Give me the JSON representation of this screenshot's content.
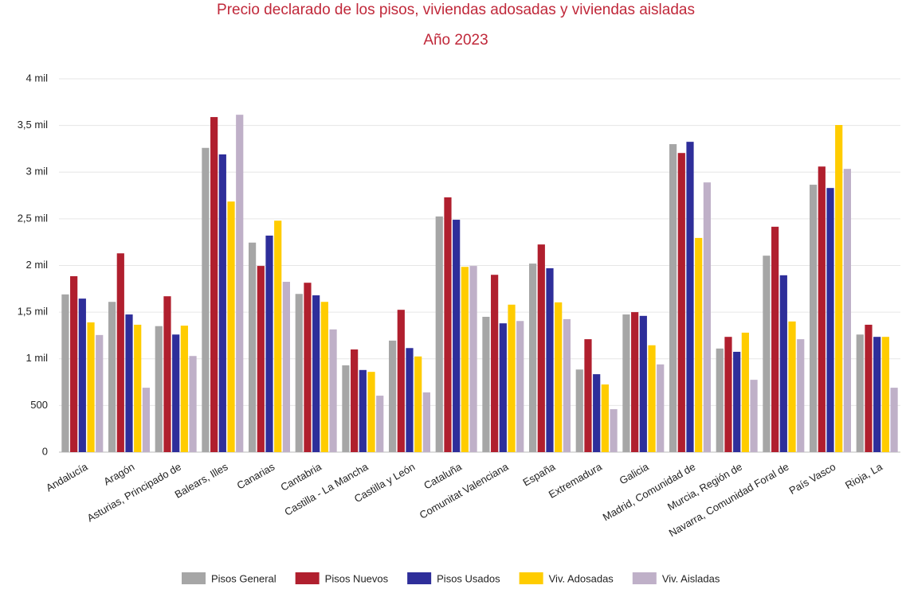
{
  "chart_data": {
    "type": "bar",
    "title": "Precio declarado de los pisos, viviendas adosadas y viviendas aisladas",
    "subtitle": "Año 2023",
    "categories": [
      "Andalucía",
      "Aragón",
      "Asturias, Principado de",
      "Balears, Illes",
      "Canarias",
      "Cantabria",
      "Castilla - La Mancha",
      "Castilla y León",
      "Cataluña",
      "Comunitat Valenciana",
      "España",
      "Extremadura",
      "Galicia",
      "Madrid, Comunidad de",
      "Murcia, Región de",
      "Navarra, Comunidad Foral de",
      "País Vasco",
      "Rioja, La"
    ],
    "series": [
      {
        "name": "Pisos General",
        "color": "#a6a6a6",
        "values": [
          1690,
          1610,
          1350,
          3260,
          2245,
          1695,
          930,
          1195,
          2525,
          1450,
          2020,
          885,
          1475,
          3300,
          1110,
          2105,
          2865,
          1260
        ]
      },
      {
        "name": "Pisos Nuevos",
        "color": "#b01f2e",
        "values": [
          1885,
          2130,
          1670,
          3590,
          1995,
          1815,
          1100,
          1525,
          2730,
          1900,
          2225,
          1210,
          1500,
          3205,
          1235,
          2415,
          3060,
          1365
        ]
      },
      {
        "name": "Pisos Usados",
        "color": "#2e2e9a",
        "values": [
          1645,
          1475,
          1260,
          3190,
          2320,
          1680,
          880,
          1115,
          2490,
          1380,
          1970,
          835,
          1460,
          3325,
          1075,
          1895,
          2830,
          1235
        ]
      },
      {
        "name": "Viv. Adosadas",
        "color": "#ffcc00",
        "values": [
          1390,
          1365,
          1355,
          2685,
          2480,
          1610,
          860,
          1025,
          1985,
          1580,
          1605,
          725,
          1145,
          2295,
          1280,
          1400,
          3505,
          1235
        ]
      },
      {
        "name": "Viv. Aisladas",
        "color": "#bfb0c8",
        "values": [
          1255,
          690,
          1030,
          3615,
          1825,
          1315,
          605,
          640,
          1995,
          1405,
          1425,
          460,
          940,
          2890,
          775,
          1210,
          3035,
          690
        ]
      }
    ],
    "ylim": [
      0,
      4000
    ],
    "yticks": [
      0,
      500,
      {
        "value": 1000,
        "label": "1 mil"
      },
      {
        "value": 1500,
        "label": "1,5 mil"
      },
      {
        "value": 2000,
        "label": "2 mil"
      },
      {
        "value": 2500,
        "label": "2,5 mil"
      },
      {
        "value": 3000,
        "label": "3 mil"
      },
      {
        "value": 3500,
        "label": "3,5 mil"
      },
      {
        "value": 4000,
        "label": "4 mil"
      }
    ],
    "grid": true
  }
}
